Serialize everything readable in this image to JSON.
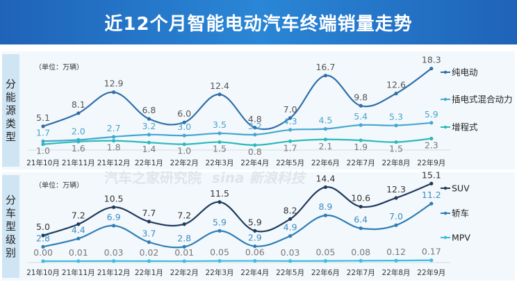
{
  "title": "近12个月智能电动汽车终端销量走势",
  "watermarks": [
    "汽车之家研究院",
    "新浪科技"
  ],
  "chart_data": [
    {
      "type": "line",
      "side_label": "分能源类型",
      "unit": "（单位：万辆）",
      "categories": [
        "21年10月",
        "21年11月",
        "21年12月",
        "22年1月",
        "22年2月",
        "22年3月",
        "22年4月",
        "22年5月",
        "22年6月",
        "22年7月",
        "22年8月",
        "22年9月"
      ],
      "series": [
        {
          "name": "纯电动",
          "color": "#2f6ea8",
          "values": [
            5.1,
            8.1,
            12.9,
            6.8,
            6.0,
            12.4,
            4.8,
            7.0,
            16.7,
            9.8,
            12.6,
            18.3
          ],
          "labels": [
            "5.1",
            "8.1",
            "12.9",
            "6.8",
            "6.0",
            "12.4",
            "4.8",
            "7.0",
            "16.7",
            "9.8",
            "12.6",
            "18.3"
          ]
        },
        {
          "name": "插电式混合动力",
          "color": "#45a7cf",
          "values": [
            1.7,
            2.0,
            2.7,
            3.2,
            3.0,
            3.5,
            3.2,
            4.3,
            4.5,
            5.4,
            5.3,
            5.9
          ],
          "labels": [
            "1.7",
            "2.0",
            "2.7",
            "3.2",
            "3.0",
            "3.5",
            "3.2",
            "4.3",
            "4.5",
            "5.4",
            "5.3",
            "5.9"
          ]
        },
        {
          "name": "增程式",
          "color": "#2bbab8",
          "values": [
            1.0,
            1.6,
            1.8,
            1.4,
            1.0,
            1.5,
            0.8,
            1.7,
            2.1,
            1.9,
            1.5,
            2.3
          ],
          "labels": [
            "1.0",
            "1.6",
            "1.8",
            "1.4",
            "1.0",
            "1.5",
            "0.8",
            "1.7",
            "2.1",
            "1.9",
            "1.5",
            "2.3"
          ]
        }
      ]
    },
    {
      "type": "line",
      "side_label": "分车型级别",
      "unit": "（单位：万辆）",
      "categories": [
        "21年10月",
        "21年11月",
        "21年12月",
        "22年1月",
        "22年2月",
        "22年3月",
        "22年4月",
        "22年5月",
        "22年6月",
        "22年7月",
        "22年8月",
        "22年9月"
      ],
      "series": [
        {
          "name": "SUV",
          "color": "#1e3a5c",
          "values": [
            5.0,
            7.2,
            10.5,
            7.7,
            7.2,
            11.5,
            5.9,
            8.2,
            14.4,
            10.6,
            12.3,
            15.1
          ],
          "labels": [
            "5.0",
            "7.2",
            "10.5",
            "7.7",
            "7.2",
            "11.5",
            "5.9",
            "8.2",
            "14.4",
            "10.6",
            "12.3",
            "15.1"
          ]
        },
        {
          "name": "轿车",
          "color": "#2e7db5",
          "values": [
            2.8,
            4.4,
            6.9,
            3.7,
            2.8,
            5.9,
            2.9,
            4.9,
            8.9,
            6.4,
            7.0,
            11.2
          ],
          "labels": [
            "2.8",
            "4.4",
            "6.9",
            "3.7",
            "2.8",
            "5.9",
            "2.9",
            "4.9",
            "8.9",
            "6.4",
            "7.0",
            "11.2"
          ]
        },
        {
          "name": "MPV",
          "color": "#3cbde2",
          "values": [
            0.0,
            0.01,
            0.03,
            0.02,
            0.01,
            0.05,
            0.06,
            0.03,
            0.05,
            0.08,
            0.12,
            0.17
          ],
          "labels": [
            "0.00",
            "0.01",
            "0.03",
            "0.02",
            "0.01",
            "0.05",
            "0.06",
            "0.03",
            "0.05",
            "0.08",
            "0.12",
            "0.17"
          ]
        }
      ]
    }
  ]
}
